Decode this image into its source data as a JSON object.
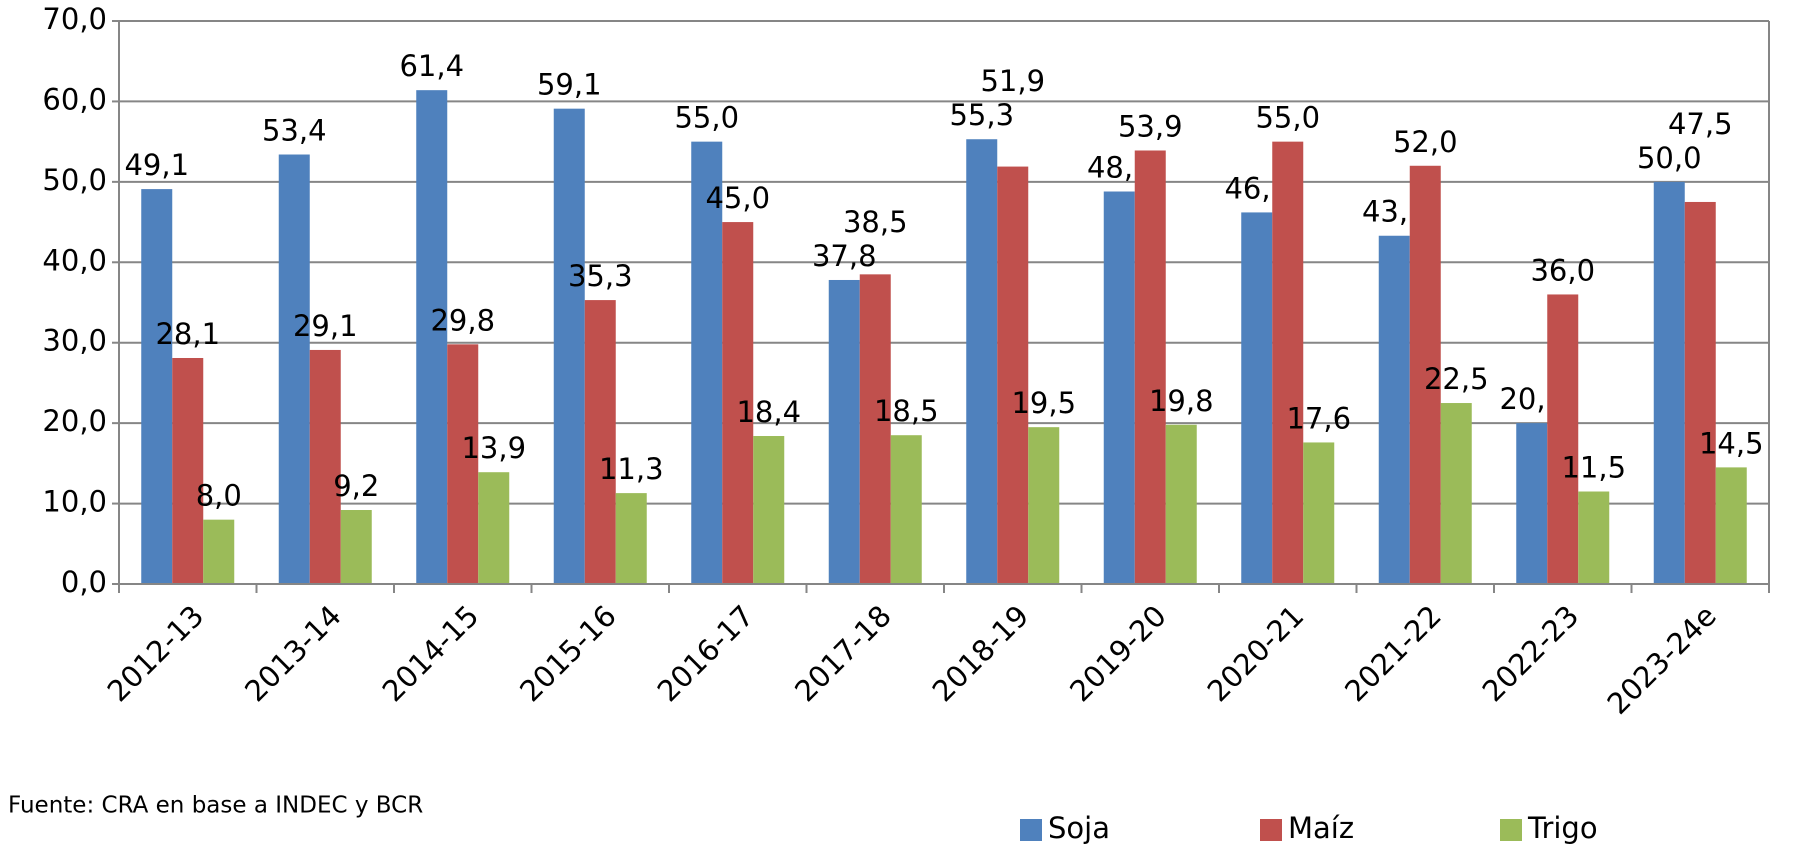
{
  "chart_data": {
    "type": "bar",
    "categories": [
      "2012-13",
      "2013-14",
      "2014-15",
      "2015-16",
      "2016-17",
      "2017-18",
      "2018-19",
      "2019-20",
      "2020-21",
      "2021-22",
      "2022-23",
      "2023-24e"
    ],
    "series": [
      {
        "name": "Soja",
        "color": "#4f81bd",
        "values": [
          49.1,
          53.4,
          61.4,
          59.1,
          55.0,
          37.8,
          55.3,
          48.8,
          46.2,
          43.3,
          20.0,
          50.0
        ],
        "value_labels": [
          "49,1",
          "53,4",
          "61,4",
          "59,1",
          "55,0",
          "37,8",
          "55,3",
          "48,8",
          "46,2",
          "43,3",
          "20,0",
          "50,0"
        ]
      },
      {
        "name": "Maíz",
        "color": "#c0504d",
        "values": [
          28.1,
          29.1,
          29.8,
          35.3,
          45.0,
          38.5,
          51.9,
          53.9,
          55.0,
          52.0,
          36.0,
          47.5
        ],
        "value_labels": [
          "28,1",
          "29,1",
          "29,8",
          "35,3",
          "45,0",
          "38,5",
          "51,9",
          "53,9",
          "55,0",
          "52,0",
          "36,0",
          "47,5"
        ]
      },
      {
        "name": "Trigo",
        "color": "#9bbb59",
        "values": [
          8.0,
          9.2,
          13.9,
          11.3,
          18.4,
          18.5,
          19.5,
          19.8,
          17.6,
          22.5,
          11.5,
          14.5
        ],
        "value_labels": [
          "8,0",
          "9,2",
          "13,9",
          "11,3",
          "18,4",
          "18,5",
          "19,5",
          "19,8",
          "17,6",
          "22,5",
          "11,5",
          "14,5"
        ]
      }
    ],
    "ylim": [
      0,
      70
    ],
    "yticks": [
      {
        "value": 0,
        "label": "0,0"
      },
      {
        "value": 10,
        "label": "10,0"
      },
      {
        "value": 20,
        "label": "20,0"
      },
      {
        "value": 30,
        "label": "30,0"
      },
      {
        "value": 40,
        "label": "40,0"
      },
      {
        "value": 50,
        "label": "50,0"
      },
      {
        "value": 60,
        "label": "60,0"
      },
      {
        "value": 70,
        "label": "70,0"
      }
    ],
    "grid": true,
    "legend": "bottom-right",
    "note": "Fuente: CRA en base a INDEC y BCR"
  }
}
